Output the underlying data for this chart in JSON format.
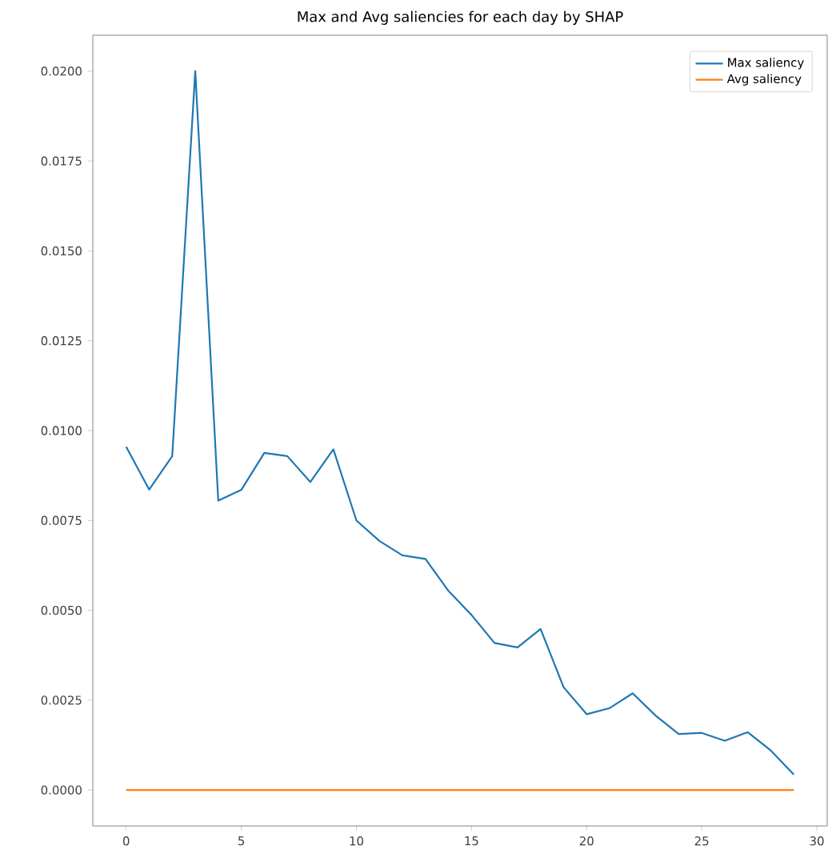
{
  "chart_data": {
    "type": "line",
    "title": "Max and Avg saliencies for each day by SHAP",
    "x": [
      0,
      1,
      2,
      3,
      4,
      5,
      6,
      7,
      8,
      9,
      10,
      11,
      12,
      13,
      14,
      15,
      16,
      17,
      18,
      19,
      20,
      21,
      22,
      23,
      24,
      25,
      26,
      27,
      28,
      29
    ],
    "series": [
      {
        "name": "Max saliency",
        "color": "#1f77b4",
        "values": [
          0.00955,
          0.00836,
          0.00929,
          0.02,
          0.00805,
          0.00835,
          0.00938,
          0.00929,
          0.00857,
          0.00948,
          0.0075,
          0.00693,
          0.00653,
          0.00643,
          0.00554,
          0.00487,
          0.00409,
          0.00397,
          0.00448,
          0.00286,
          0.00211,
          0.00228,
          0.00269,
          0.00207,
          0.00156,
          0.00159,
          0.00137,
          0.00161,
          0.0011,
          0.00043
        ]
      },
      {
        "name": "Avg saliency",
        "color": "#ff7f0e",
        "values": [
          0,
          0,
          0,
          0,
          0,
          0,
          0,
          0,
          0,
          0,
          0,
          0,
          0,
          0,
          0,
          0,
          0,
          0,
          0,
          0,
          0,
          0,
          0,
          0,
          0,
          0,
          0,
          0,
          0,
          0
        ]
      }
    ],
    "xlim": [
      -1.45,
      30.45
    ],
    "ylim": [
      -0.001,
      0.021
    ],
    "xticks": [
      0,
      5,
      10,
      15,
      20,
      25,
      30
    ],
    "yticks": [
      {
        "value": 0,
        "label": "0.0000"
      },
      {
        "value": 0.0025,
        "label": "0.0025"
      },
      {
        "value": 0.005,
        "label": "0.0050"
      },
      {
        "value": 0.0075,
        "label": "0.0075"
      },
      {
        "value": 0.01,
        "label": "0.0100"
      },
      {
        "value": 0.0125,
        "label": "0.0125"
      },
      {
        "value": 0.015,
        "label": "0.0150"
      },
      {
        "value": 0.0175,
        "label": "0.0175"
      },
      {
        "value": 0.02,
        "label": "0.0200"
      }
    ],
    "grid": false,
    "legend": "top right",
    "marker": "none",
    "line_style": "solid"
  }
}
